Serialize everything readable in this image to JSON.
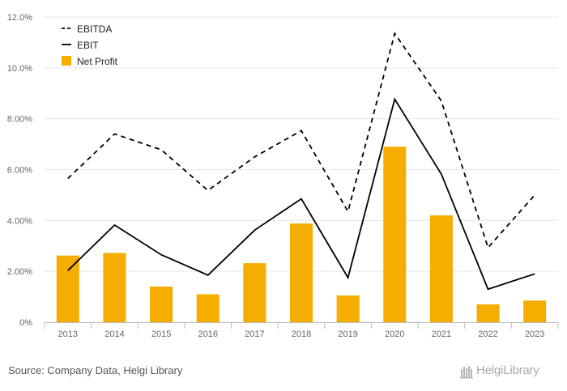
{
  "chart_data": {
    "type": "bar",
    "categories": [
      "2013",
      "2014",
      "2015",
      "2016",
      "2017",
      "2018",
      "2019",
      "2020",
      "2021",
      "2022",
      "2023"
    ],
    "series": [
      {
        "name": "EBITDA",
        "kind": "line",
        "style": "dashed",
        "color": "#000000",
        "values": [
          5.65,
          7.4,
          6.78,
          5.18,
          6.5,
          7.53,
          4.35,
          11.35,
          8.7,
          2.93,
          5.0
        ]
      },
      {
        "name": "EBIT",
        "kind": "line",
        "style": "solid",
        "color": "#000000",
        "values": [
          2.03,
          3.82,
          2.65,
          1.85,
          3.62,
          4.85,
          1.75,
          8.77,
          5.82,
          1.3,
          1.9
        ]
      },
      {
        "name": "Net Profit",
        "kind": "bar",
        "color": "#f5ad00",
        "values": [
          2.62,
          2.72,
          1.4,
          1.1,
          2.32,
          3.88,
          1.05,
          6.9,
          4.2,
          0.7,
          0.85
        ]
      }
    ],
    "y_ticks": [
      "0%",
      "2.00%",
      "4.00%",
      "6.00%",
      "8.00%",
      "10.0%",
      "12.0%"
    ],
    "ylim": [
      0,
      12
    ],
    "grid": true,
    "legend_position": "top-left"
  },
  "footer": {
    "source": "Source: Company Data, Helgi Library",
    "brand": "HelgiLibrary"
  }
}
